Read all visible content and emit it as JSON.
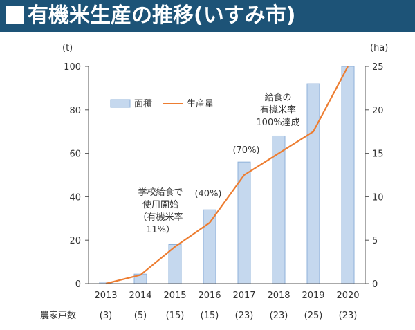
{
  "header": {
    "title": "有機米生産の推移(いすみ市)"
  },
  "colors": {
    "banner_bg": "#1d5377",
    "bar_fill": "#c5d8ee",
    "bar_stroke": "#8eb0d9",
    "line": "#ed7d31"
  },
  "chart_data": {
    "type": "bar",
    "categories": [
      "2013",
      "2014",
      "2015",
      "2016",
      "2017",
      "2018",
      "2019",
      "2020"
    ],
    "row_label": "農家戸数",
    "row_values": [
      "(3)",
      "(5)",
      "(15)",
      "(15)",
      "(23)",
      "(23)",
      "(25)",
      "(23)"
    ],
    "series": [
      {
        "name": "面積",
        "type": "bar",
        "axis": "right",
        "unit": "(ha)",
        "values": [
          0.2,
          1.1,
          4.5,
          8.5,
          14,
          17,
          23,
          25
        ]
      },
      {
        "name": "生産量",
        "type": "line",
        "axis": "left",
        "unit": "(t)",
        "values": [
          0,
          4,
          17,
          28,
          50,
          60,
          70,
          100
        ]
      }
    ],
    "y_left": {
      "label": "(t)",
      "range": [
        0,
        100
      ],
      "ticks": [
        0,
        20,
        40,
        60,
        80,
        100
      ]
    },
    "y_right": {
      "label": "(ha)",
      "range": [
        0,
        25
      ],
      "ticks": [
        0,
        5,
        10,
        15,
        20,
        25
      ]
    },
    "legend_position": "upper-left",
    "grid": false,
    "annotations": [
      {
        "category": "2015",
        "lines": [
          "学校給食で",
          "使用開始",
          "（有機米率",
          "11%）"
        ]
      },
      {
        "category": "2016",
        "lines": [
          "(40%)"
        ]
      },
      {
        "category": "2017",
        "lines": [
          "(70%)"
        ]
      },
      {
        "category": "2019",
        "lines": [
          "給食の",
          "有機米率",
          "100%達成"
        ]
      }
    ]
  }
}
